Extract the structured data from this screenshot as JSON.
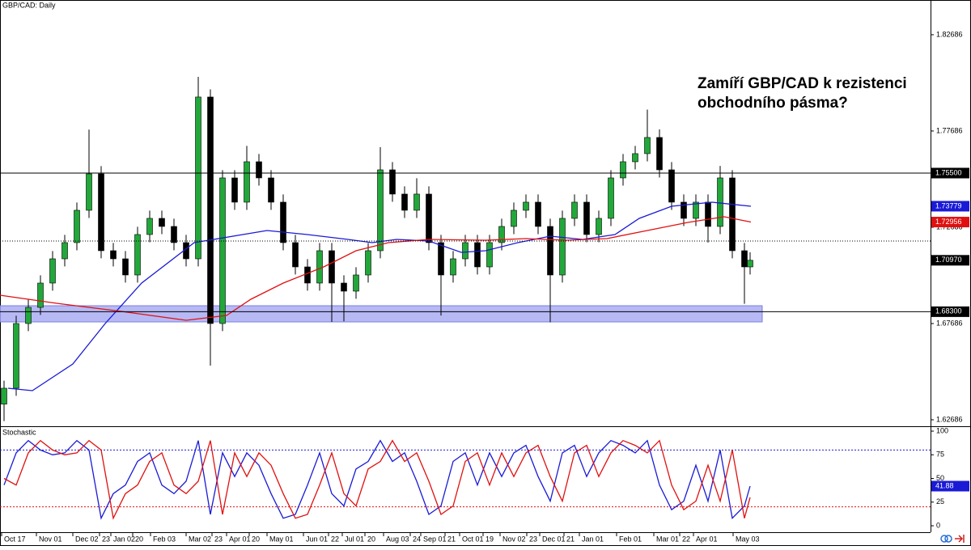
{
  "chart_data": [
    {
      "type": "candlestick",
      "title": "GBP/CAD: Daily",
      "annotation": [
        "Zamíří GBP/CAD k rezistenci",
        "obchodního pásma?"
      ],
      "x": [
        1,
        4,
        7,
        10,
        13,
        16,
        19,
        22,
        25,
        28,
        31,
        34,
        37,
        40,
        43,
        46,
        49,
        52,
        55,
        58,
        61,
        64,
        67,
        70,
        73,
        76,
        79,
        82,
        85,
        88,
        91,
        94,
        97,
        100,
        103,
        106,
        109,
        112,
        115,
        118,
        121,
        124,
        127,
        130,
        133,
        136,
        139,
        142,
        145,
        148,
        151,
        154,
        157,
        160,
        163,
        166,
        169,
        172,
        175,
        178,
        181,
        184,
        185.4
      ],
      "open": [
        1.635,
        1.64325,
        1.67686,
        1.68526,
        1.69787,
        1.71047,
        1.71888,
        1.73568,
        1.75459,
        1.71468,
        1.71047,
        1.70207,
        1.72308,
        1.73148,
        1.72728,
        1.71888,
        1.71047,
        1.79451,
        1.67686,
        1.75249,
        1.73989,
        1.76089,
        1.75249,
        1.73989,
        1.71888,
        1.70627,
        1.69787,
        1.71468,
        1.69787,
        1.69367,
        1.70207,
        1.71468,
        1.75669,
        1.74409,
        1.73568,
        1.74409,
        1.71888,
        1.70207,
        1.71047,
        1.71888,
        1.70627,
        1.71888,
        1.72728,
        1.73568,
        1.73989,
        1.72728,
        1.70207,
        1.73148,
        1.73989,
        1.72308,
        1.73148,
        1.75249,
        1.76089,
        1.7651,
        1.7735,
        1.75669,
        1.73989,
        1.73148,
        1.73989,
        1.72728,
        1.75249,
        1.71468,
        1.70627
      ],
      "high": [
        1.6472,
        1.6809,
        1.6893,
        1.7019,
        1.7145,
        1.7229,
        1.7397,
        1.7776,
        1.7586,
        1.7187,
        1.7145,
        1.7271,
        1.7355,
        1.7355,
        1.7313,
        1.7229,
        1.805,
        1.7985,
        1.7565,
        1.7565,
        1.7691,
        1.7649,
        1.7565,
        1.7439,
        1.7229,
        1.7103,
        1.7187,
        1.7187,
        1.7019,
        1.7061,
        1.7187,
        1.7685,
        1.7607,
        1.7481,
        1.7523,
        1.7481,
        1.7229,
        1.7145,
        1.7229,
        1.7229,
        1.7229,
        1.7313,
        1.7397,
        1.7439,
        1.7439,
        1.7313,
        1.7355,
        1.7439,
        1.7439,
        1.7355,
        1.7565,
        1.7649,
        1.7691,
        1.788,
        1.7777,
        1.7607,
        1.7439,
        1.7439,
        1.7439,
        1.7587,
        1.7565,
        1.7187,
        1.7139
      ],
      "low": [
        1.6262,
        1.6393,
        1.6729,
        1.6813,
        1.6939,
        1.7065,
        1.7149,
        1.7317,
        1.7107,
        1.7065,
        1.6981,
        1.6981,
        1.7191,
        1.7233,
        1.7149,
        1.7065,
        1.7065,
        1.655,
        1.6729,
        1.7359,
        1.7359,
        1.7485,
        1.7359,
        1.7149,
        1.7023,
        1.6939,
        1.6939,
        1.6777,
        1.678,
        1.6897,
        1.6981,
        1.7107,
        1.7401,
        1.7317,
        1.7317,
        1.7149,
        1.681,
        1.6981,
        1.7065,
        1.7023,
        1.7023,
        1.7149,
        1.7233,
        1.7317,
        1.7233,
        1.6775,
        1.6981,
        1.7275,
        1.7191,
        1.7191,
        1.7275,
        1.7485,
        1.7569,
        1.7611,
        1.7527,
        1.7359,
        1.7275,
        1.7275,
        1.7189,
        1.7233,
        1.7107,
        1.6871,
        1.7023
      ],
      "close": [
        1.64325,
        1.67686,
        1.68526,
        1.69787,
        1.71047,
        1.71888,
        1.73568,
        1.75459,
        1.71468,
        1.71047,
        1.70207,
        1.72308,
        1.73148,
        1.72728,
        1.71888,
        1.71047,
        1.79451,
        1.67686,
        1.75249,
        1.73989,
        1.76089,
        1.75249,
        1.73989,
        1.71888,
        1.70627,
        1.69787,
        1.71468,
        1.69787,
        1.69367,
        1.70207,
        1.71468,
        1.75669,
        1.74409,
        1.73568,
        1.74409,
        1.71888,
        1.70207,
        1.71047,
        1.71888,
        1.70627,
        1.71888,
        1.72728,
        1.73568,
        1.73989,
        1.72728,
        1.70207,
        1.73148,
        1.73989,
        1.72308,
        1.73148,
        1.75249,
        1.76089,
        1.7651,
        1.7735,
        1.75669,
        1.73989,
        1.73148,
        1.73989,
        1.72728,
        1.75249,
        1.71468,
        1.70627,
        1.7097
      ],
      "up_color": "#22a83a",
      "down_color": "#000000",
      "series": [
        {
          "color": "#1a1ad6",
          "x": [
            2,
            8,
            18,
            26,
            35,
            48,
            60,
            66,
            76,
            86,
            92,
            98,
            106,
            114,
            120,
            128,
            136,
            144,
            152,
            158,
            166,
            176,
            185.6
          ],
          "values": [
            1.64325,
            1.64199,
            1.65586,
            1.67686,
            1.69787,
            1.71888,
            1.72308,
            1.72518,
            1.72308,
            1.72056,
            1.71888,
            1.72056,
            1.71972,
            1.71384,
            1.71468,
            1.71888,
            1.72224,
            1.72056,
            1.72308,
            1.73148,
            1.73779,
            1.73989,
            1.73779
          ]
        },
        {
          "color": "#e01010",
          "x": [
            0,
            14,
            30,
            46,
            56,
            62,
            70,
            80,
            88,
            96,
            106,
            120,
            130,
            140,
            150,
            160,
            170,
            179,
            185.6
          ],
          "values": [
            1.69157,
            1.68736,
            1.68316,
            1.67854,
            1.68106,
            1.68946,
            1.69787,
            1.70627,
            1.71468,
            1.71888,
            1.72056,
            1.72014,
            1.72098,
            1.72014,
            1.72098,
            1.72518,
            1.72938,
            1.73232,
            1.72956
          ]
        }
      ],
      "zone": {
        "range": [
          1.6777,
          1.6861
        ],
        "color": "#a9adf2"
      },
      "levels": [
        {
          "value": 1.755,
          "label": "1.75500",
          "style": "solid"
        },
        {
          "value": 1.683,
          "label": "1.68300",
          "style": "solid"
        },
        {
          "value": 1.71972,
          "style": "dotted"
        }
      ],
      "badges": [
        {
          "value": 1.73779,
          "label": "1.73779",
          "color": "#1a1ad6"
        },
        {
          "value": 1.72956,
          "label": "1.72956",
          "color": "#e01010"
        },
        {
          "value": 1.7097,
          "label": "1.70970",
          "color": "#000000"
        }
      ],
      "xlim": [
        0,
        230
      ],
      "ylim": [
        1.6235,
        1.8449
      ],
      "yticks": [
        1.82686,
        1.77686,
        1.72686,
        1.67686,
        1.62686
      ],
      "xticks": [
        {
          "value": 0.4,
          "label": "Oct 17"
        },
        {
          "value": 9,
          "label": "Nov 01"
        },
        {
          "value": 18,
          "label": "Dec 02"
        },
        {
          "value": 24.6,
          "label": "23"
        },
        {
          "value": 27.4,
          "label": "Jan 02"
        },
        {
          "value": 32.8,
          "label": "20"
        },
        {
          "value": 37.2,
          "label": "Feb 03"
        },
        {
          "value": 46,
          "label": "Mar 02"
        },
        {
          "value": 52.4,
          "label": "23"
        },
        {
          "value": 56,
          "label": "Apr 01"
        },
        {
          "value": 61.6,
          "label": "20"
        },
        {
          "value": 66,
          "label": "May 01"
        },
        {
          "value": 75,
          "label": "Jun 01"
        },
        {
          "value": 81.2,
          "label": "22"
        },
        {
          "value": 84.6,
          "label": "Jul 01"
        },
        {
          "value": 90.2,
          "label": "20"
        },
        {
          "value": 94.8,
          "label": "Aug 03"
        },
        {
          "value": 101.4,
          "label": "24"
        },
        {
          "value": 104,
          "label": "Sep 01"
        },
        {
          "value": 110,
          "label": "21"
        },
        {
          "value": 113.6,
          "label": "Oct 01"
        },
        {
          "value": 119.4,
          "label": "19"
        },
        {
          "value": 123.6,
          "label": "Nov 02"
        },
        {
          "value": 130.2,
          "label": "23"
        },
        {
          "value": 133.4,
          "label": "Dec 01"
        },
        {
          "value": 139.4,
          "label": "21"
        },
        {
          "value": 143.2,
          "label": "Jan 01"
        },
        {
          "value": 152.4,
          "label": "Feb 01"
        },
        {
          "value": 161.6,
          "label": "Mar 01"
        },
        {
          "value": 168,
          "label": "22"
        },
        {
          "value": 171.4,
          "label": "Apr 01"
        },
        {
          "value": 181.2,
          "label": "May 03"
        }
      ]
    },
    {
      "type": "line",
      "title": "Stochastic",
      "series": [
        {
          "color": "#1a1ad6",
          "values": [
            43,
            77,
            90,
            80,
            75,
            77,
            90,
            80,
            8,
            34,
            43,
            68,
            77,
            43,
            34,
            47,
            90,
            12,
            77,
            52,
            77,
            64,
            34,
            8,
            12,
            43,
            77,
            34,
            21,
            60,
            68,
            90,
            68,
            77,
            47,
            12,
            21,
            68,
            77,
            43,
            77,
            52,
            77,
            85,
            52,
            26,
            77,
            85,
            52,
            77,
            90,
            85,
            77,
            90,
            43,
            17,
            26,
            64,
            26,
            80,
            8,
            21,
            41.88
          ]
        },
        {
          "color": "#e01010",
          "values": [
            50,
            43,
            77,
            90,
            80,
            75,
            77,
            90,
            80,
            8,
            34,
            43,
            68,
            77,
            43,
            34,
            47,
            90,
            12,
            77,
            52,
            77,
            64,
            34,
            8,
            12,
            43,
            77,
            34,
            21,
            60,
            68,
            90,
            68,
            77,
            47,
            12,
            21,
            68,
            77,
            43,
            77,
            52,
            77,
            85,
            52,
            26,
            77,
            85,
            52,
            77,
            90,
            85,
            77,
            90,
            43,
            17,
            26,
            64,
            26,
            80,
            8,
            30
          ]
        }
      ],
      "levels": [
        {
          "value": 80,
          "color": "#1a1ad6"
        },
        {
          "value": 20,
          "color": "#e01010"
        }
      ],
      "badges": [
        {
          "value": 41.88,
          "label": "41.88",
          "color": "#1a1ad6"
        }
      ],
      "ylim": [
        -6.8,
        104.3
      ],
      "yticks": [
        100,
        75,
        50,
        25,
        0
      ]
    }
  ]
}
